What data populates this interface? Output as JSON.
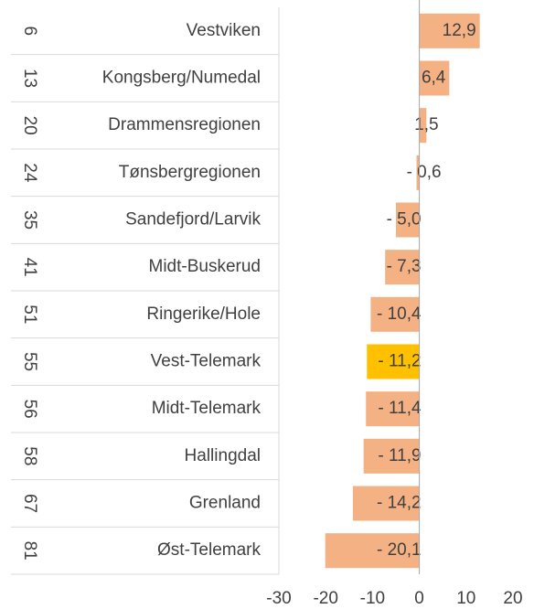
{
  "chart_data": {
    "type": "bar",
    "orientation": "horizontal",
    "ranks": [
      6,
      13,
      20,
      24,
      35,
      41,
      51,
      55,
      56,
      58,
      67,
      81
    ],
    "categories": [
      "Vestviken",
      "Kongsberg/Numedal",
      "Drammensregionen",
      "Tønsbergregionen",
      "Sandefjord/Larvik",
      "Midt-Buskerud",
      "Ringerike/Hole",
      "Vest-Telemark",
      "Midt-Telemark",
      "Hallingdal",
      "Grenland",
      "Øst-Telemark"
    ],
    "values": [
      12.9,
      6.4,
      1.5,
      -0.6,
      -5.0,
      -7.3,
      -10.4,
      -11.2,
      -11.4,
      -11.9,
      -14.2,
      -20.1
    ],
    "value_labels": [
      "12,9",
      "6,4",
      "1,5",
      "- 0,6",
      "- 5,0",
      "- 7,3",
      "- 10,4",
      "- 11,2",
      "- 11,4",
      "- 11,9",
      "- 14,2",
      "- 20,1"
    ],
    "colors": [
      "#f4b183",
      "#f4b183",
      "#f4b183",
      "#f4b183",
      "#f4b183",
      "#f4b183",
      "#f4b183",
      "#ffc000",
      "#f4b183",
      "#f4b183",
      "#f4b183",
      "#f4b183"
    ],
    "xlim": [
      -30,
      20
    ],
    "xticks": [
      -30,
      -20,
      -10,
      0,
      10,
      20
    ]
  }
}
